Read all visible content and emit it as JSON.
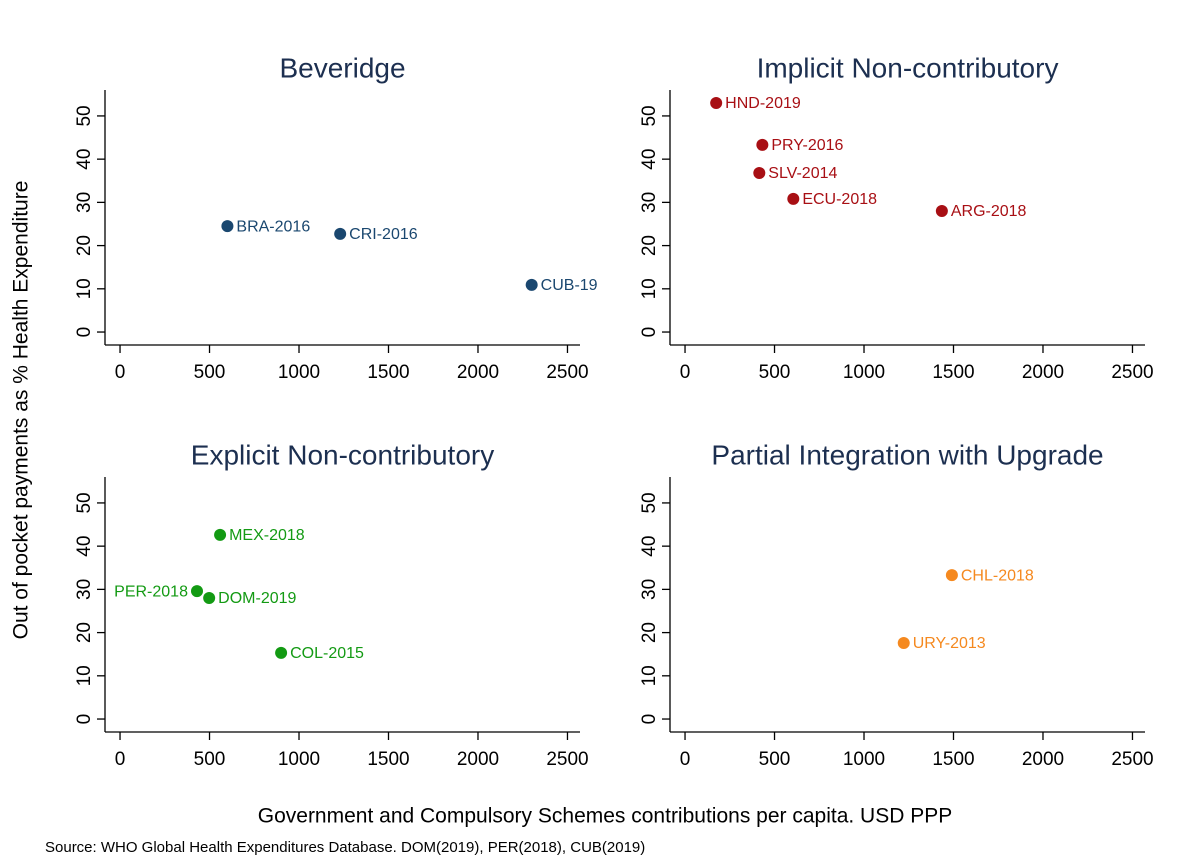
{
  "chart_data": [
    {
      "type": "scatter",
      "title": "Beveridge",
      "color": "#1a476f",
      "x": [
        600,
        1230,
        2300
      ],
      "values": [
        24.5,
        22.7,
        10.9
      ],
      "point_labels": [
        "BRA-2016",
        "CRI-2016",
        "CUB-19"
      ],
      "point_label_positions": [
        "right",
        "right",
        "right"
      ],
      "xlim": [
        -84,
        2570
      ],
      "ylim": [
        -3,
        56
      ],
      "xticks": [
        0,
        500,
        1000,
        1500,
        2000,
        2500
      ],
      "yticks": [
        0,
        10,
        20,
        30,
        40,
        50
      ]
    },
    {
      "type": "scatter",
      "title": "Implicit Non-contributory",
      "color": "#a80f14",
      "x": [
        174,
        432,
        415,
        605,
        1435
      ],
      "values": [
        53,
        43.3,
        36.8,
        30.8,
        28
      ],
      "point_labels": [
        "HND-2019",
        "PRY-2016",
        "SLV-2014",
        "ECU-2018",
        "ARG-2018"
      ],
      "point_label_positions": [
        "right",
        "right",
        "right",
        "right",
        "right"
      ],
      "xlim": [
        -84,
        2570
      ],
      "ylim": [
        -3,
        56
      ],
      "xticks": [
        0,
        500,
        1000,
        1500,
        2000,
        2500
      ],
      "yticks": [
        0,
        10,
        20,
        30,
        40,
        50
      ]
    },
    {
      "type": "scatter",
      "title": "Explicit Non-contributory",
      "color": "#139a13",
      "x": [
        559,
        430,
        498,
        900
      ],
      "values": [
        42.6,
        29.6,
        28,
        15.3
      ],
      "point_labels": [
        "MEX-2018",
        "PER-2018",
        "DOM-2019",
        "COL-2015"
      ],
      "point_label_positions": [
        "right",
        "left",
        "right",
        "right"
      ],
      "xlim": [
        -84,
        2570
      ],
      "ylim": [
        -3,
        56
      ],
      "xticks": [
        0,
        500,
        1000,
        1500,
        2000,
        2500
      ],
      "yticks": [
        0,
        10,
        20,
        30,
        40,
        50
      ]
    },
    {
      "type": "scatter",
      "title": "Partial Integration with Upgrade",
      "color": "#f5891f",
      "x": [
        1491,
        1222
      ],
      "values": [
        33.3,
        17.6
      ],
      "point_labels": [
        "CHL-2018",
        "URY-2013"
      ],
      "point_label_positions": [
        "right",
        "right"
      ],
      "xlim": [
        -84,
        2570
      ],
      "ylim": [
        -3,
        56
      ],
      "xticks": [
        0,
        500,
        1000,
        1500,
        2000,
        2500
      ],
      "yticks": [
        0,
        10,
        20,
        30,
        40,
        50
      ]
    }
  ],
  "y_label": "Out of pocket payments as % Health Expenditure",
  "x_label": "Government and Compulsory Schemes contributions per capita. USD PPP",
  "source": "Source: WHO Global Health Expenditures Database. DOM(2019), PER(2018), CUB(2019)"
}
